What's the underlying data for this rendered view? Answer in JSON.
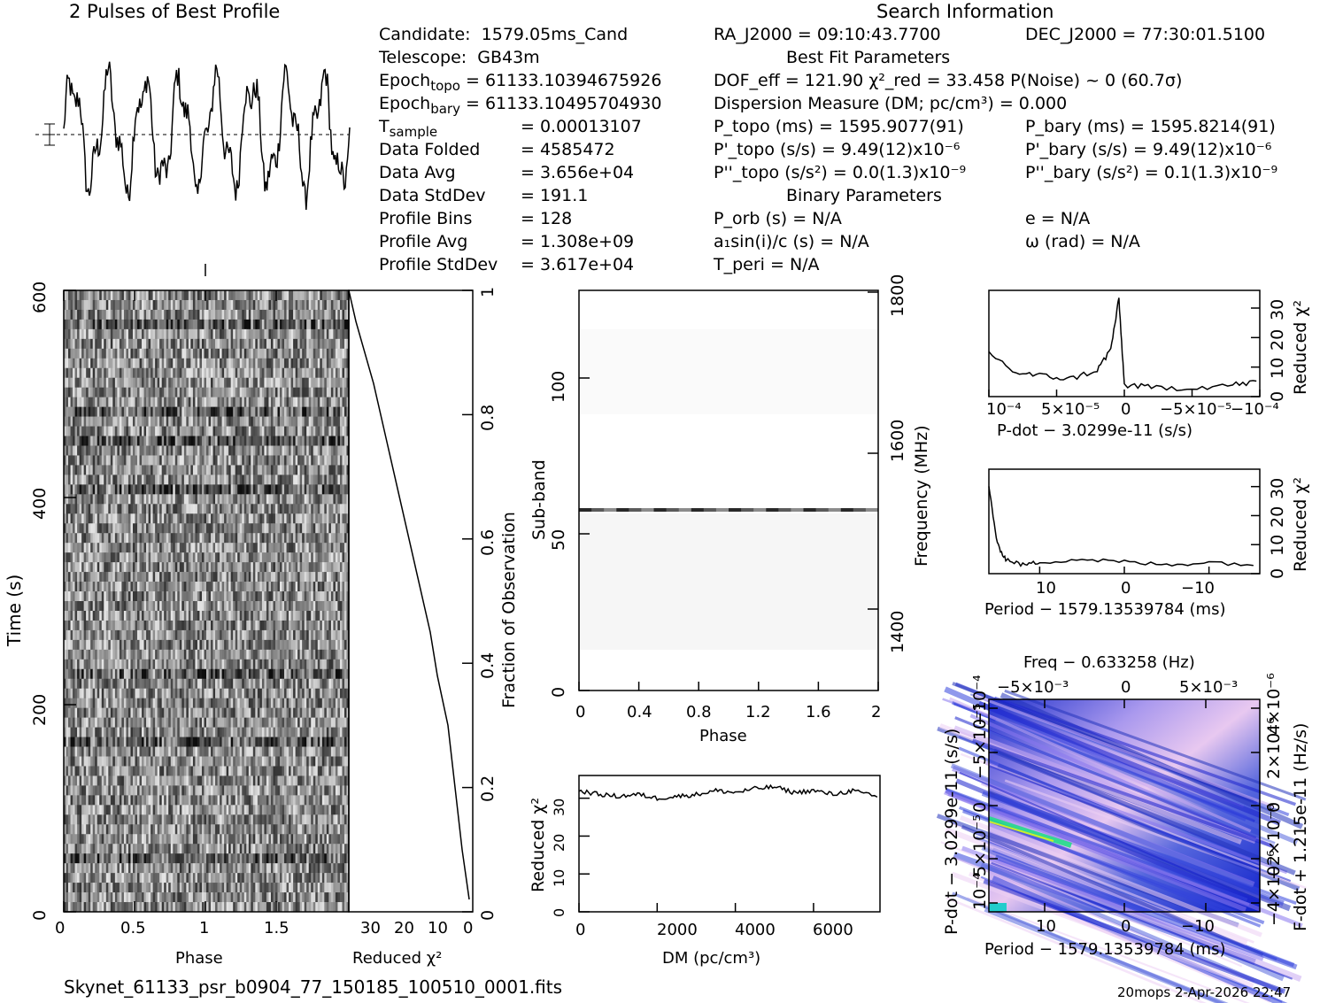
{
  "header": {
    "profile_title": "2 Pulses of Best Profile",
    "search_title": "Search Information",
    "best_fit_title": "Best Fit Parameters",
    "binary_title": "Binary Parameters"
  },
  "info_left": [
    {
      "k": "Candidate:",
      "v": "1579.05ms_Cand"
    },
    {
      "k": "Telescope:",
      "v": "GB43m"
    },
    {
      "k": "Epoch_topo",
      "v": "= 61133.10394675926"
    },
    {
      "k": "Epoch_bary",
      "v": "= 61133.10495704930"
    },
    {
      "k": "T_sample",
      "v": "=   0.00013107"
    },
    {
      "k": "Data Folded",
      "v": "=   4585472"
    },
    {
      "k": "Data Avg",
      "v": "=   3.656e+04"
    },
    {
      "k": "Data StdDev",
      "v": "=   191.1"
    },
    {
      "k": "Profile Bins",
      "v": "=   128"
    },
    {
      "k": "Profile Avg",
      "v": "=   1.308e+09"
    },
    {
      "k": "Profile StdDev",
      "v": "=   3.617e+04"
    }
  ],
  "info_mid": {
    "ra": "RA_J2000 = 09:10:43.7700",
    "dof": "DOF_eff = 121.90   χ²_red = 33.458   P(Noise) ~ 0    (60.7σ)",
    "dm": "Dispersion Measure (DM; pc/cm³) = 0.000",
    "ptopo": "P_topo (ms) =  1595.9077(91)",
    "pdtopo": "P'_topo (s/s) =  9.49(12)x10⁻⁶",
    "pddtopo": "P''_topo (s/s²) = 0.0(1.3)x10⁻⁹",
    "porb": "P_orb (s) = N/A",
    "a1": "a₁sin(i)/c (s) = N/A",
    "tperi": "T_peri = N/A"
  },
  "info_right": {
    "dec": "DEC_J2000 = 77:30:01.5100",
    "pbary": "P_bary (ms) =  1595.8214(91)",
    "pdbary": "P'_bary (s/s) =  9.49(12)x10⁻⁶",
    "pddbary": "P''_bary (s/s²) =  0.1(1.3)x10⁻⁹",
    "e": "e = N/A",
    "omega": "ω (rad) = N/A"
  },
  "footer": {
    "filename": "Skynet_61133_psr_b0904_77_150185_100510_0001.fits",
    "stamp": "20mops   2-Apr-2026 22:47"
  },
  "chart_data": [
    {
      "type": "line",
      "id": "profile",
      "title": "2 Pulses of Best Profile",
      "xlabel": "",
      "ylabel": "",
      "note": "noisy periodic profile, roughly 8 peaks across two pulses"
    },
    {
      "type": "heatmap",
      "id": "time-phase",
      "xlabel": "Phase",
      "ylabel": "Time (s)",
      "xlim": [
        0,
        2
      ],
      "ylim": [
        0,
        600
      ],
      "xticks": [
        "0",
        "0.5",
        "1",
        "1.5"
      ],
      "yticks": [
        "0",
        "200",
        "400",
        "600"
      ]
    },
    {
      "type": "line",
      "id": "chi-vs-time",
      "xlabel": "Reduced χ²",
      "ylabel": "Fraction of Observation",
      "xlim": [
        35,
        0
      ],
      "ylim": [
        0,
        1
      ],
      "xticks": [
        "30",
        "20",
        "10",
        "0"
      ],
      "yticks": [
        "0",
        "0.2",
        "0.4",
        "0.6",
        "0.8",
        "1"
      ],
      "x": [
        1,
        3,
        5,
        7,
        10,
        12,
        16,
        20,
        24,
        28,
        33,
        35
      ],
      "y": [
        0.02,
        0.1,
        0.2,
        0.3,
        0.38,
        0.45,
        0.55,
        0.65,
        0.75,
        0.85,
        0.95,
        1.0
      ]
    },
    {
      "type": "heatmap",
      "id": "subband-phase",
      "xlabel": "Phase",
      "ylabel": "Sub-band",
      "y2label": "Frequency (MHz)",
      "xlim": [
        0,
        2
      ],
      "ylim": [
        0,
        128
      ],
      "xticks": [
        "0",
        "0.4",
        "0.8",
        "1.2",
        "1.6",
        "2"
      ],
      "yticks": [
        "0",
        "50",
        "100"
      ],
      "y2ticks": [
        "1400",
        "1600",
        "1800"
      ]
    },
    {
      "type": "line",
      "id": "chi-vs-dm",
      "xlabel": "DM (pc/cm³)",
      "ylabel": "Reduced χ²",
      "xlim": [
        0,
        7700
      ],
      "ylim": [
        0,
        36
      ],
      "xticks": [
        "0",
        "2000",
        "4000",
        "6000"
      ],
      "yticks": [
        "0",
        "10",
        "20",
        "30"
      ],
      "x": [
        0,
        500,
        1000,
        1500,
        2000,
        2500,
        3000,
        3500,
        4000,
        4500,
        5000,
        5500,
        6000,
        6500,
        7000,
        7700
      ],
      "y": [
        32,
        31,
        30.5,
        31,
        30,
        30.5,
        31,
        32,
        31.5,
        32.5,
        33,
        31.5,
        32,
        31,
        32,
        30
      ]
    },
    {
      "type": "line",
      "id": "chi-vs-pdot",
      "xlabel": "P-dot − 3.0299e-11 (s/s)",
      "ylabel": "Reduced χ²",
      "xticks": [
        "10⁻⁴",
        "5×10⁻⁵",
        "0",
        "−5×10⁻⁵",
        "−10⁻⁴"
      ],
      "yticks": [
        "0",
        "10",
        "20",
        "30"
      ],
      "x": [
        0.0001,
        8e-05,
        6e-05,
        4e-05,
        2e-05,
        1e-05,
        4e-06,
        0,
        -2e-05,
        -5e-05,
        -8e-05,
        -0.0001
      ],
      "y": [
        15,
        8,
        7,
        6,
        9,
        16,
        33,
        4,
        3,
        3,
        4,
        5
      ]
    },
    {
      "type": "line",
      "id": "chi-vs-period",
      "xlabel": "Period − 1579.13539784 (ms)",
      "ylabel": "Reduced χ²",
      "xticks": [
        "10",
        "0",
        "−10"
      ],
      "yticks": [
        "0",
        "10",
        "20",
        "30"
      ],
      "x": [
        16,
        15,
        14,
        12,
        10,
        5,
        0,
        -5,
        -10,
        -16
      ],
      "y": [
        30,
        10,
        5,
        3,
        4,
        5,
        4,
        3,
        4,
        3
      ]
    },
    {
      "type": "heatmap",
      "id": "pdot-period",
      "title": "Freq − 0.633258 (Hz)",
      "xlabel": "Period − 1579.13539784 (ms)",
      "ylabel": "P-dot − 3.0299e-11 (s/s)",
      "y2label": "F-dot + 1.215e-11 (Hz/s)",
      "xticks": [
        "10",
        "0",
        "−10"
      ],
      "topticks": [
        "−5×10⁻³",
        "0",
        "5×10⁻³"
      ],
      "yticks": [
        "10⁻⁴",
        "5×10⁻⁵",
        "0",
        "−5×10⁻⁵",
        "−10⁻⁴"
      ],
      "y2ticks": [
        "−4×10⁻⁶",
        "−2×10⁻⁶",
        "0",
        "2×10⁻⁶",
        "4×10⁻⁶"
      ]
    }
  ]
}
